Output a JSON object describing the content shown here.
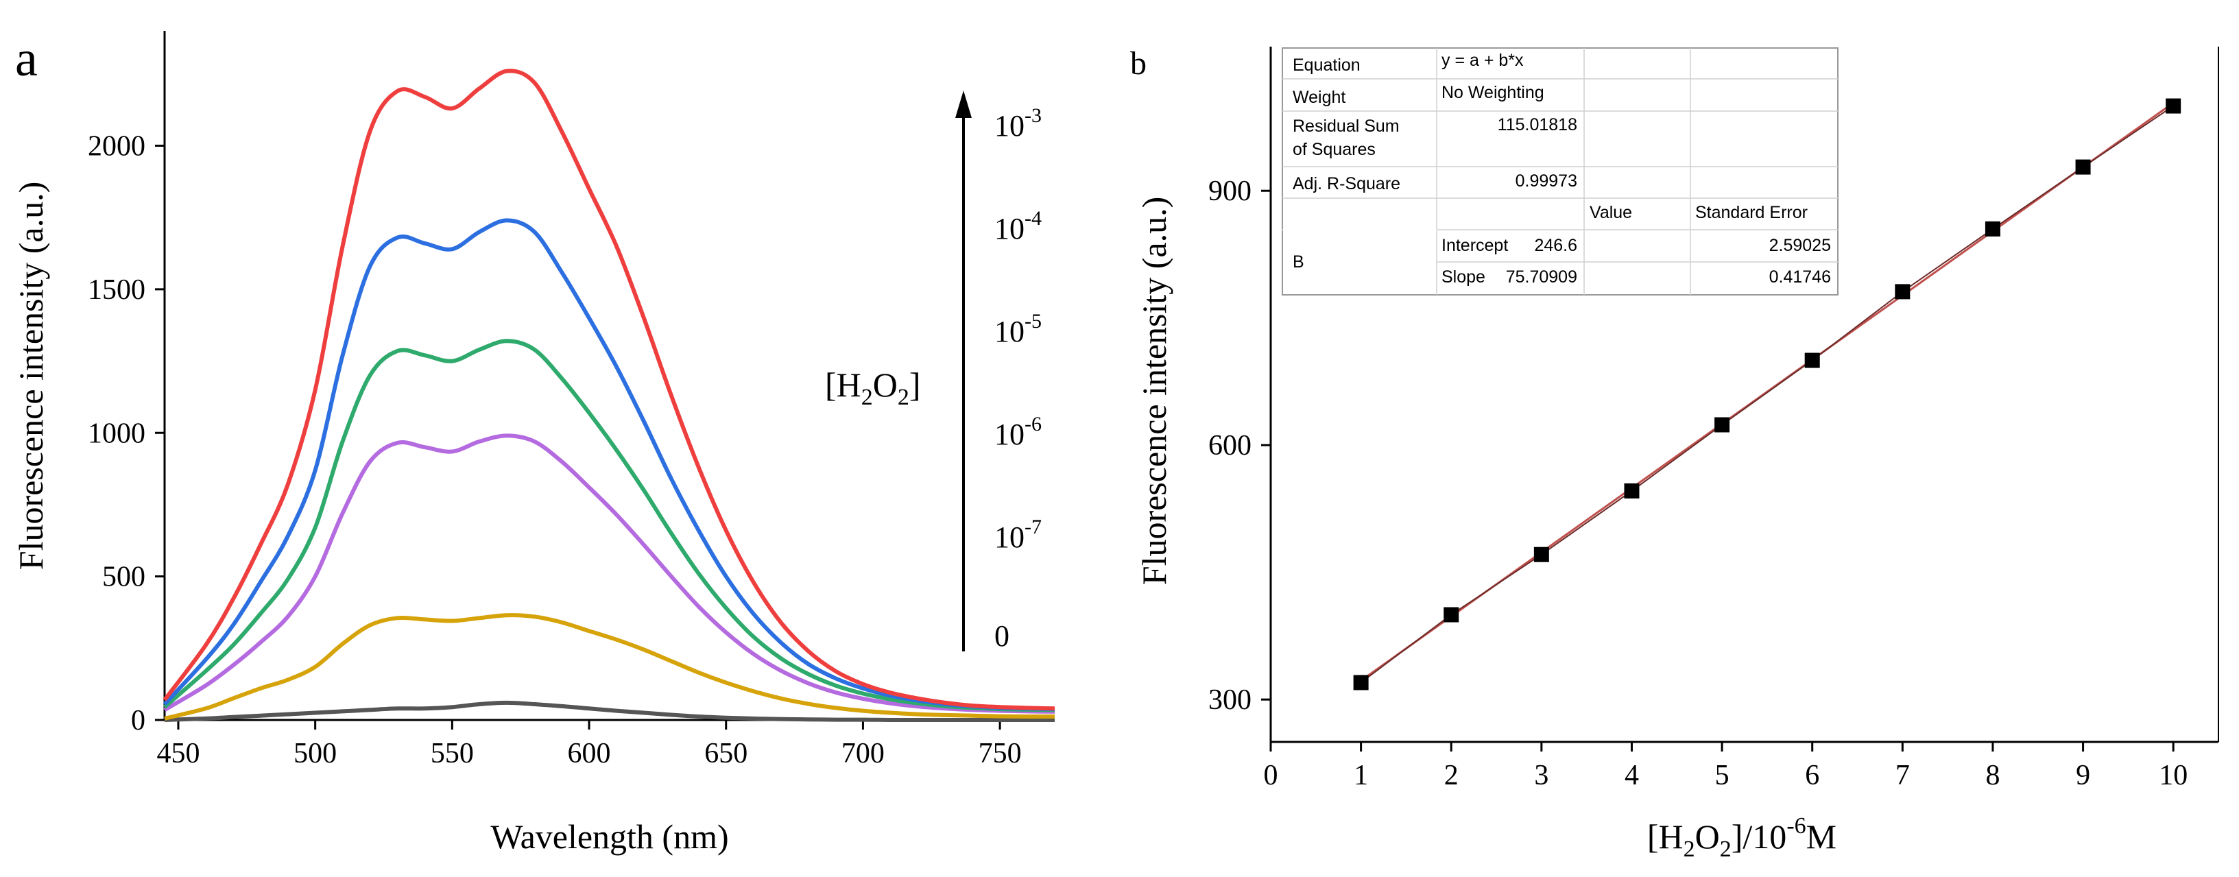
{
  "chart_data": [
    {
      "panel_label": "a",
      "type": "line",
      "xlabel": "Wavelength (nm)",
      "ylabel": "Fluorescence intensity (a.u.)",
      "xlim": [
        445,
        770
      ],
      "ylim": [
        0,
        2400
      ],
      "xticks": [
        "450",
        "500",
        "550",
        "600",
        "650",
        "700",
        "750"
      ],
      "yticks": [
        "0",
        "500",
        "1000",
        "1500",
        "2000"
      ],
      "grid": false,
      "arrow_label": "[H2O2]",
      "concentration_labels": [
        {
          "base": "10",
          "exp": "-3"
        },
        {
          "base": "10",
          "exp": "-4"
        },
        {
          "base": "10",
          "exp": "-5"
        },
        {
          "base": "10",
          "exp": "-6"
        },
        {
          "base": "10",
          "exp": "-7"
        },
        {
          "base": "0",
          "exp": ""
        }
      ],
      "x": [
        445,
        460,
        470,
        480,
        490,
        500,
        510,
        520,
        530,
        540,
        550,
        560,
        570,
        580,
        590,
        600,
        610,
        620,
        630,
        640,
        650,
        660,
        670,
        680,
        690,
        700,
        710,
        720,
        730,
        740,
        750,
        760,
        770
      ],
      "series": [
        {
          "name": "10^-3",
          "color": "#ef3e3e",
          "values": [
            70,
            260,
            420,
            610,
            820,
            1150,
            1650,
            2050,
            2190,
            2170,
            2130,
            2200,
            2260,
            2220,
            2050,
            1850,
            1650,
            1400,
            1130,
            880,
            660,
            480,
            340,
            240,
            170,
            125,
            95,
            75,
            60,
            50,
            45,
            42,
            40
          ]
        },
        {
          "name": "10^-4",
          "color": "#2c6fe0",
          "values": [
            55,
            210,
            330,
            480,
            640,
            870,
            1270,
            1580,
            1680,
            1660,
            1640,
            1700,
            1740,
            1700,
            1560,
            1400,
            1230,
            1040,
            840,
            660,
            500,
            370,
            270,
            195,
            145,
            110,
            85,
            68,
            55,
            47,
            42,
            40,
            38
          ]
        },
        {
          "name": "10^-5",
          "color": "#2eaa6c",
          "values": [
            45,
            170,
            260,
            370,
            490,
            670,
            970,
            1200,
            1285,
            1270,
            1250,
            1290,
            1320,
            1290,
            1190,
            1070,
            940,
            800,
            650,
            510,
            390,
            290,
            215,
            160,
            120,
            92,
            72,
            58,
            48,
            42,
            38,
            36,
            35
          ]
        },
        {
          "name": "10^-6",
          "color": "#b56be0",
          "values": [
            35,
            120,
            190,
            270,
            360,
            500,
            720,
            900,
            965,
            950,
            935,
            970,
            990,
            970,
            900,
            810,
            715,
            610,
            500,
            395,
            305,
            230,
            172,
            128,
            96,
            74,
            58,
            47,
            40,
            35,
            32,
            30,
            29
          ]
        },
        {
          "name": "10^-7",
          "color": "#d6a30a",
          "values": [
            5,
            40,
            75,
            110,
            140,
            185,
            265,
            330,
            355,
            350,
            345,
            355,
            365,
            360,
            340,
            310,
            280,
            245,
            205,
            165,
            130,
            100,
            75,
            56,
            42,
            32,
            25,
            20,
            17,
            15,
            13,
            12,
            12
          ]
        },
        {
          "name": "0",
          "color": "#555555",
          "values": [
            0,
            5,
            10,
            15,
            20,
            25,
            30,
            35,
            40,
            40,
            45,
            55,
            60,
            55,
            48,
            40,
            32,
            25,
            18,
            12,
            8,
            5,
            3,
            2,
            1,
            1,
            0,
            0,
            0,
            0,
            0,
            0,
            0
          ]
        }
      ]
    },
    {
      "panel_label": "b",
      "type": "scatter",
      "xlabel_base": "[H2O2]/10",
      "xlabel_exp": "-6",
      "xlabel_unit": "M",
      "ylabel": "Fluorescence intensity (a.u.)",
      "xlim": [
        0,
        10.5
      ],
      "ylim": [
        250,
        1070
      ],
      "xticks": [
        "0",
        "1",
        "2",
        "3",
        "4",
        "5",
        "6",
        "7",
        "8",
        "9",
        "10"
      ],
      "yticks": [
        "300",
        "600",
        "900"
      ],
      "grid": false,
      "x": [
        1,
        2,
        3,
        4,
        5,
        6,
        7,
        8,
        9,
        10
      ],
      "y": [
        320,
        400,
        471,
        546,
        624,
        700,
        781,
        855,
        928,
        1000
      ],
      "fit": {
        "intercept": 246.6,
        "slope": 75.70909,
        "color": "#c0504d"
      },
      "marker_color": "#000000",
      "fit_table": {
        "equation_label": "Equation",
        "equation_value": "y = a + b*x",
        "weight_label": "Weight",
        "weight_value": "No Weighting",
        "rss_label_line1": "Residual Sum",
        "rss_label_line2": "of Squares",
        "rss_value": "115.01818",
        "adjr_label": "Adj. R-Square",
        "adjr_value": "0.99973",
        "col_value": "Value",
        "col_stderr": "Standard Error",
        "group_label": "B",
        "intercept_label": "Intercept",
        "intercept_value": "246.6",
        "intercept_error": "2.59025",
        "slope_label": "Slope",
        "slope_value": "75.70909",
        "slope_error": "0.41746"
      }
    }
  ]
}
